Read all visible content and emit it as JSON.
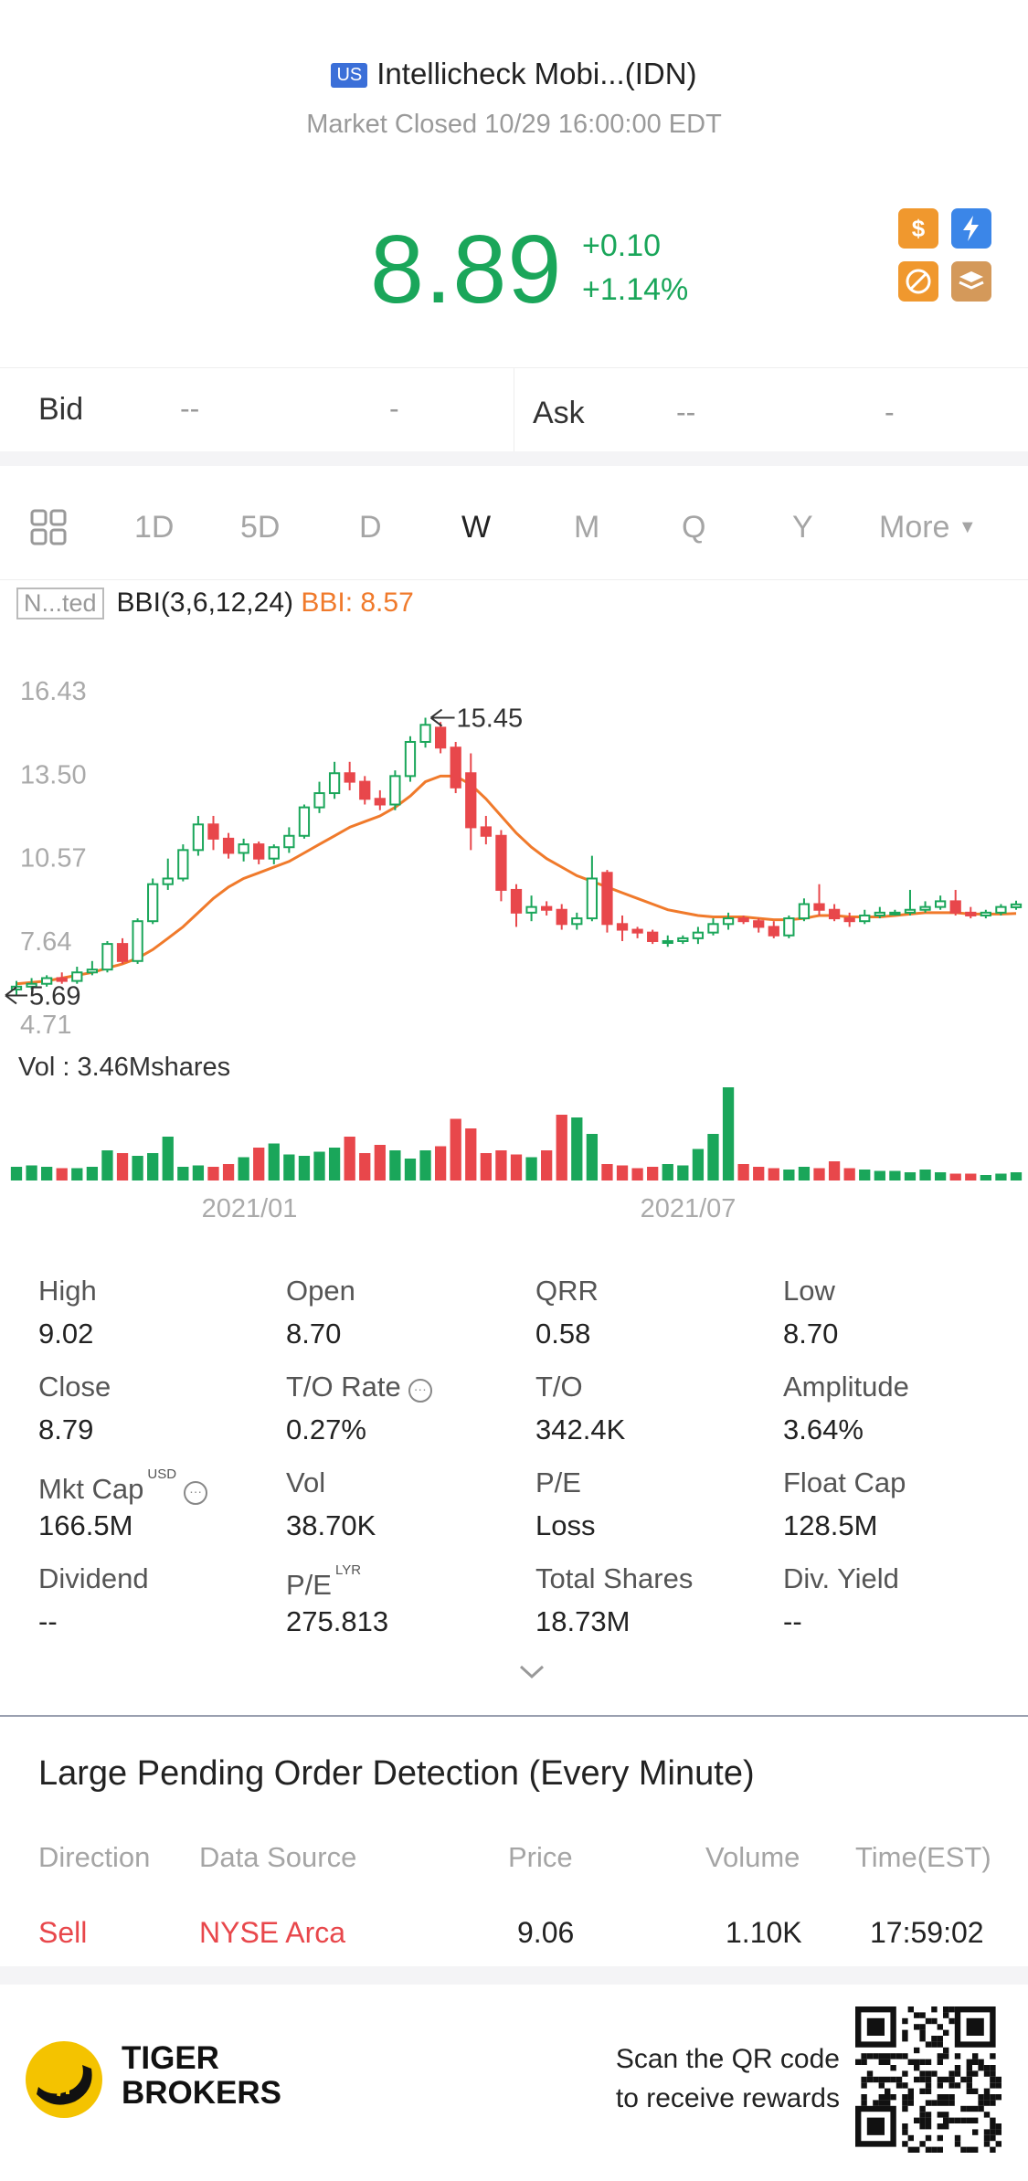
{
  "header": {
    "market_badge": "US",
    "title": "Intellicheck Mobi...(IDN)",
    "status": "Market Closed 10/29 16:00:00 EDT",
    "price": "8.89",
    "change": "+0.10",
    "change_pct": "+1.14%",
    "colors": {
      "up": "#1aa65a",
      "down": "#e8474b",
      "accent_orange": "#f0982e",
      "accent_blue": "#3b86e8"
    },
    "feature_icons": [
      "dollar-icon",
      "lightning-icon",
      "no-short-icon",
      "layers-icon"
    ]
  },
  "bid_ask": {
    "bid_label": "Bid",
    "bid_price": "--",
    "bid_size": "-",
    "ask_label": "Ask",
    "ask_price": "--",
    "ask_size": "-"
  },
  "periods": {
    "items": [
      "1D",
      "5D",
      "D",
      "W",
      "M",
      "Q",
      "Y"
    ],
    "active": "W",
    "more_label": "More"
  },
  "indicator": {
    "tag": "N...ted",
    "name": "BBI(3,6,12,24)",
    "value_label": "BBI: 8.57"
  },
  "chart_data": {
    "type": "candlestick",
    "y_ticks": [
      "16.43",
      "13.50",
      "10.57",
      "7.64",
      "4.71"
    ],
    "ylim": [
      4.71,
      16.43
    ],
    "x_labels": [
      "2021/01",
      "2021/07"
    ],
    "high_marker": "15.45",
    "low_marker": "5.69",
    "volume_label": "Vol",
    "volume_value": ":  3.46Mshares",
    "candles": [
      [
        5.9,
        6.0,
        5.7,
        6.2
      ],
      [
        6.0,
        6.1,
        5.9,
        6.3
      ],
      [
        6.1,
        6.3,
        6.0,
        6.4
      ],
      [
        6.3,
        6.2,
        6.1,
        6.5
      ],
      [
        6.2,
        6.5,
        6.1,
        6.7
      ],
      [
        6.5,
        6.6,
        6.4,
        6.9
      ],
      [
        6.6,
        7.5,
        6.5,
        7.6
      ],
      [
        7.5,
        6.9,
        6.8,
        7.7
      ],
      [
        6.9,
        8.3,
        6.8,
        8.4
      ],
      [
        8.3,
        9.6,
        8.2,
        9.8
      ],
      [
        9.6,
        9.8,
        9.4,
        10.5
      ],
      [
        9.8,
        10.8,
        9.7,
        11.0
      ],
      [
        10.8,
        11.7,
        10.6,
        12.0
      ],
      [
        11.7,
        11.2,
        10.8,
        12.0
      ],
      [
        11.2,
        10.7,
        10.5,
        11.4
      ],
      [
        10.7,
        11.0,
        10.4,
        11.2
      ],
      [
        11.0,
        10.5,
        10.3,
        11.1
      ],
      [
        10.5,
        10.9,
        10.3,
        11.0
      ],
      [
        10.9,
        11.3,
        10.7,
        11.6
      ],
      [
        11.3,
        12.3,
        11.2,
        12.4
      ],
      [
        12.3,
        12.8,
        12.1,
        13.2
      ],
      [
        12.8,
        13.5,
        12.6,
        13.9
      ],
      [
        13.5,
        13.2,
        12.9,
        13.9
      ],
      [
        13.2,
        12.6,
        12.4,
        13.4
      ],
      [
        12.6,
        12.4,
        12.2,
        12.9
      ],
      [
        12.4,
        13.4,
        12.2,
        13.6
      ],
      [
        13.4,
        14.6,
        13.2,
        14.8
      ],
      [
        14.6,
        15.2,
        14.4,
        15.45
      ],
      [
        15.1,
        14.4,
        14.2,
        15.3
      ],
      [
        14.4,
        13.0,
        12.8,
        14.6
      ],
      [
        13.5,
        11.6,
        10.8,
        14.2
      ],
      [
        11.6,
        11.3,
        11.0,
        12.0
      ],
      [
        11.3,
        9.4,
        9.0,
        11.5
      ],
      [
        9.4,
        8.6,
        8.1,
        9.6
      ],
      [
        8.6,
        8.8,
        8.3,
        9.2
      ],
      [
        8.8,
        8.7,
        8.5,
        9.0
      ],
      [
        8.7,
        8.2,
        8.0,
        8.9
      ],
      [
        8.2,
        8.4,
        8.0,
        8.6
      ],
      [
        8.4,
        9.8,
        8.3,
        10.6
      ],
      [
        10.0,
        8.2,
        7.9,
        10.1
      ],
      [
        8.2,
        8.0,
        7.6,
        8.5
      ],
      [
        8.0,
        7.9,
        7.7,
        8.1
      ],
      [
        7.9,
        7.6,
        7.5,
        8.0
      ],
      [
        7.6,
        7.6,
        7.4,
        7.8
      ],
      [
        7.6,
        7.7,
        7.5,
        7.8
      ],
      [
        7.7,
        7.9,
        7.5,
        8.1
      ],
      [
        7.9,
        8.2,
        7.8,
        8.4
      ],
      [
        8.2,
        8.4,
        8.0,
        8.6
      ],
      [
        8.4,
        8.3,
        8.2,
        8.5
      ],
      [
        8.3,
        8.1,
        7.9,
        8.4
      ],
      [
        8.1,
        7.8,
        7.7,
        8.3
      ],
      [
        7.8,
        8.4,
        7.7,
        8.5
      ],
      [
        8.4,
        8.9,
        8.3,
        9.1
      ],
      [
        8.9,
        8.7,
        8.5,
        9.6
      ],
      [
        8.7,
        8.4,
        8.3,
        8.9
      ],
      [
        8.4,
        8.3,
        8.1,
        8.6
      ],
      [
        8.3,
        8.5,
        8.2,
        8.7
      ],
      [
        8.5,
        8.6,
        8.4,
        8.8
      ],
      [
        8.6,
        8.6,
        8.5,
        8.7
      ],
      [
        8.6,
        8.7,
        8.5,
        9.4
      ],
      [
        8.7,
        8.8,
        8.6,
        9.0
      ],
      [
        8.8,
        9.0,
        8.7,
        9.2
      ],
      [
        9.0,
        8.6,
        8.5,
        9.4
      ],
      [
        8.6,
        8.5,
        8.4,
        8.8
      ],
      [
        8.5,
        8.6,
        8.4,
        8.7
      ],
      [
        8.6,
        8.8,
        8.5,
        8.9
      ],
      [
        8.79,
        8.89,
        8.7,
        9.02
      ]
    ],
    "bbi": [
      6.1,
      6.15,
      6.2,
      6.3,
      6.4,
      6.5,
      6.65,
      6.8,
      7.0,
      7.3,
      7.7,
      8.1,
      8.6,
      9.1,
      9.5,
      9.8,
      10.0,
      10.2,
      10.4,
      10.7,
      11.0,
      11.3,
      11.6,
      11.8,
      12.0,
      12.3,
      12.7,
      13.2,
      13.4,
      13.4,
      13.1,
      12.6,
      12.0,
      11.4,
      10.9,
      10.5,
      10.2,
      9.9,
      9.7,
      9.5,
      9.3,
      9.1,
      8.9,
      8.7,
      8.6,
      8.5,
      8.45,
      8.45,
      8.45,
      8.4,
      8.35,
      8.35,
      8.4,
      8.5,
      8.5,
      8.45,
      8.45,
      8.45,
      8.5,
      8.55,
      8.6,
      8.6,
      8.6,
      8.55,
      8.55,
      8.55,
      8.57
    ],
    "volumes": [
      0.5,
      0.55,
      0.5,
      0.45,
      0.45,
      0.5,
      1.1,
      1.0,
      0.9,
      1.0,
      1.6,
      0.5,
      0.55,
      0.5,
      0.6,
      0.85,
      1.2,
      1.35,
      0.95,
      0.9,
      1.05,
      1.2,
      1.6,
      1.0,
      1.3,
      1.1,
      0.8,
      1.1,
      1.25,
      2.25,
      1.9,
      1.0,
      1.1,
      0.95,
      0.85,
      1.1,
      2.4,
      2.3,
      1.7,
      0.6,
      0.55,
      0.45,
      0.5,
      0.6,
      0.55,
      1.15,
      1.7,
      3.4,
      0.6,
      0.5,
      0.45,
      0.4,
      0.5,
      0.45,
      0.7,
      0.45,
      0.4,
      0.35,
      0.35,
      0.3,
      0.4,
      0.3,
      0.25,
      0.25,
      0.2,
      0.25,
      0.3
    ]
  },
  "stats": [
    {
      "label": "High",
      "value": "9.02"
    },
    {
      "label": "Open",
      "value": "8.70"
    },
    {
      "label": "QRR",
      "value": "0.58"
    },
    {
      "label": "Low",
      "value": "8.70"
    },
    {
      "label": "Close",
      "value": "8.79"
    },
    {
      "label": "T/O Rate",
      "value": "0.27%"
    },
    {
      "label": "T/O",
      "value": "342.4K"
    },
    {
      "label": "Amplitude",
      "value": "3.64%"
    },
    {
      "label": "Mkt Cap",
      "value": "166.5M",
      "sup": "USD"
    },
    {
      "label": "Vol",
      "value": "38.70K"
    },
    {
      "label": "P/E",
      "value": "Loss"
    },
    {
      "label": "Float Cap",
      "value": "128.5M"
    },
    {
      "label": "Dividend",
      "value": "--"
    },
    {
      "label": "P/E",
      "value": "275.813",
      "sup": "LYR"
    },
    {
      "label": "Total Shares",
      "value": "18.73M"
    },
    {
      "label": "Div. Yield",
      "value": "--"
    }
  ],
  "pending": {
    "title": "Large Pending Order Detection (Every Minute)",
    "headers": [
      "Direction",
      "Data Source",
      "Price",
      "Volume",
      "Time(EST)"
    ],
    "row": [
      "Sell",
      "NYSE Arca",
      "9.06",
      "1.10K",
      "17:59:02"
    ]
  },
  "footer": {
    "brand_line1": "TIGER",
    "brand_line2": "BROKERS",
    "scan_line1": "Scan the QR code",
    "scan_line2": "to receive rewards"
  }
}
